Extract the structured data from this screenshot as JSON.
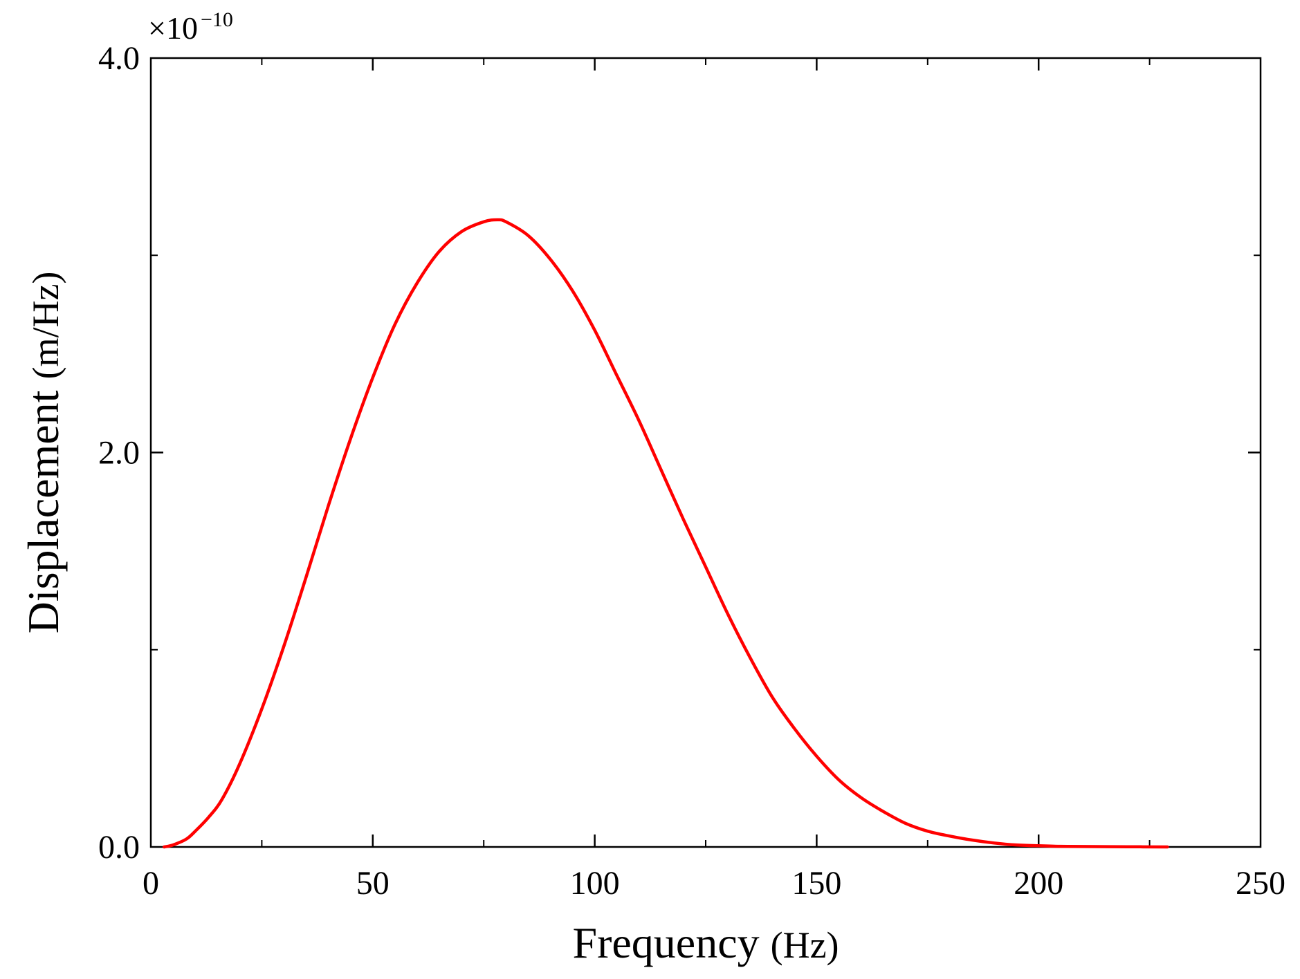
{
  "chart_data": {
    "type": "line",
    "title": "",
    "xlabel": "Frequency",
    "xlabel_unit": "(Hz)",
    "ylabel": "Displacement",
    "ylabel_unit": "(m/Hz)",
    "y_multiplier": {
      "base": "×10",
      "exponent": "−10"
    },
    "xlim": [
      0,
      250
    ],
    "ylim": [
      0,
      4.0
    ],
    "x_ticks": [
      0,
      50,
      100,
      150,
      200,
      250
    ],
    "x_tick_labels": [
      "0",
      "50",
      "100",
      "150",
      "200",
      "250"
    ],
    "y_ticks": [
      0,
      2.0,
      4.0
    ],
    "y_tick_labels": [
      "0.0",
      "2.0",
      "4.0"
    ],
    "grid": false,
    "series": [
      {
        "name": "Displacement",
        "color": "#ff0000",
        "x": [
          3,
          5,
          8,
          10,
          13,
          16,
          20,
          25,
          30,
          35,
          40,
          45,
          50,
          55,
          60,
          65,
          70,
          75,
          78,
          80,
          85,
          90,
          95,
          100,
          105,
          110,
          115,
          120,
          125,
          130,
          135,
          140,
          145,
          150,
          155,
          160,
          165,
          170,
          175,
          180,
          185,
          190,
          195,
          200,
          205,
          210,
          220,
          229
        ],
        "y": [
          0.0,
          0.01,
          0.04,
          0.08,
          0.15,
          0.24,
          0.42,
          0.7,
          1.02,
          1.37,
          1.73,
          2.07,
          2.38,
          2.65,
          2.86,
          3.02,
          3.12,
          3.17,
          3.18,
          3.17,
          3.1,
          2.98,
          2.82,
          2.62,
          2.39,
          2.16,
          1.91,
          1.66,
          1.42,
          1.18,
          0.96,
          0.76,
          0.6,
          0.46,
          0.34,
          0.25,
          0.18,
          0.12,
          0.08,
          0.055,
          0.035,
          0.02,
          0.01,
          0.006,
          0.003,
          0.002,
          0.001,
          0.0
        ]
      }
    ]
  }
}
